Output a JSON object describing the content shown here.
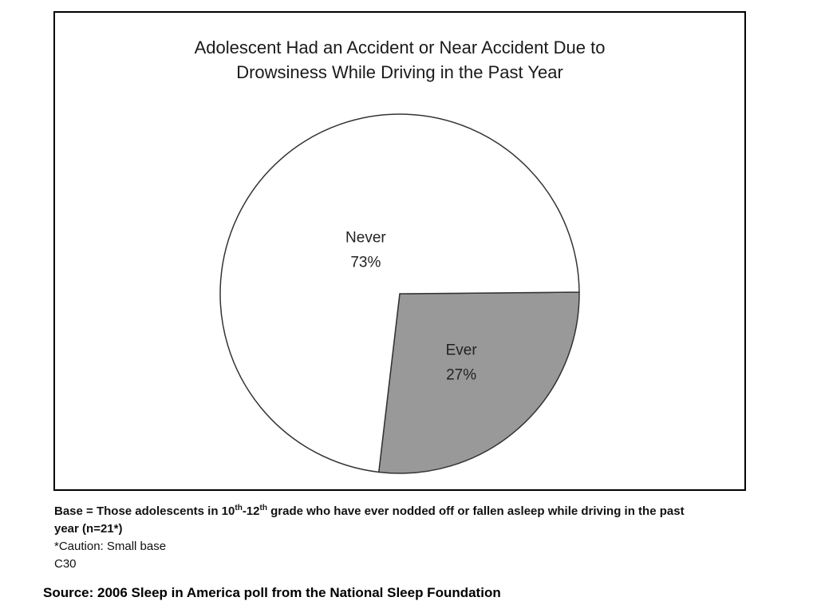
{
  "chart_data": {
    "type": "pie",
    "title_lines": [
      "Adolescent Had an Accident or Near Accident Due to",
      "Drowsiness While Driving in the Past Year"
    ],
    "slices": [
      {
        "name": "Never",
        "value": 73,
        "label": "73%",
        "color": "#ffffff"
      },
      {
        "name": "Ever",
        "value": 27,
        "label": "27%",
        "color": "#999999"
      }
    ]
  },
  "caption": {
    "base_prefix": "Base = Those adolescents in 10",
    "sup1": "th",
    "base_mid": "-12",
    "sup2": "th",
    "base_suffix": " grade who have ever nodded off or fallen asleep while driving in the past year (n=21*)",
    "caution": "*Caution:  Small base",
    "code": "C30"
  },
  "source": "Source: 2006 Sleep in America poll from the National Sleep Foundation"
}
